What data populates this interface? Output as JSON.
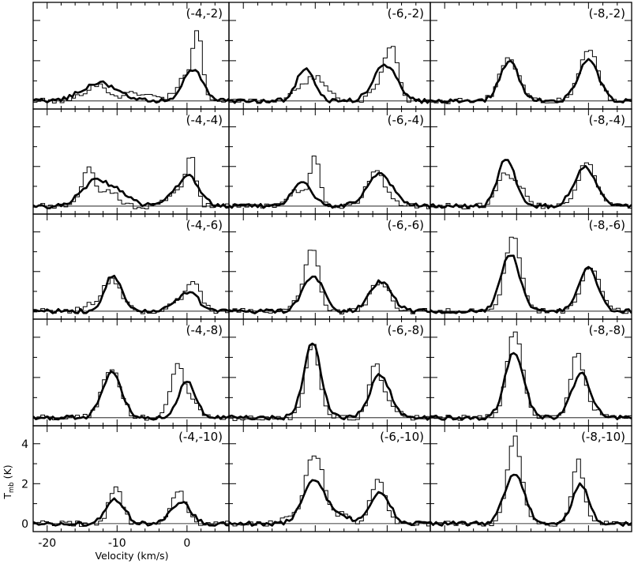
{
  "chart_data": {
    "type": "line",
    "layout": "5x3 grid of spectra",
    "xlabel": "Velocity (km/s)",
    "ylabel": "T",
    "ylabel_sub": "mb",
    "ylabel_unit": "(K)",
    "xlim": [
      -22,
      6
    ],
    "ylim": [
      -0.4,
      4.9
    ],
    "x_ticks": [
      -20,
      -10,
      0
    ],
    "y_ticks": [
      0,
      2,
      4
    ],
    "x_tick_labels": [
      "-20",
      "-10",
      "0"
    ],
    "y_tick_labels": [
      "0",
      "2",
      "4"
    ],
    "series_styles": [
      "thin histogram",
      "thick line"
    ],
    "panels": [
      {
        "label": "(-4,-2)",
        "thin": [
          [
            -13,
            0.8,
            1.6
          ],
          [
            -7,
            0.4,
            2.0
          ],
          [
            1.6,
            2.7,
            0.6
          ],
          [
            0.3,
            1.4,
            1.5
          ]
        ],
        "thick": [
          [
            -12.5,
            0.9,
            2.6
          ],
          [
            0.8,
            1.6,
            1.4
          ]
        ]
      },
      {
        "label": "(-6,-2)",
        "thin": [
          [
            -11,
            0.9,
            1.6
          ],
          [
            -9,
            0.6,
            1.2
          ],
          [
            0.6,
            2.5,
            0.9
          ],
          [
            -1,
            0.6,
            1.2
          ]
        ],
        "thick": [
          [
            -11.4,
            1.6,
            1.2
          ],
          [
            -0.3,
            1.8,
            1.6
          ]
        ]
      },
      {
        "label": "(-8,-2)",
        "thin": [
          [
            -11,
            2.1,
            1.3
          ],
          [
            0,
            2.6,
            1.3
          ]
        ],
        "thick": [
          [
            -11,
            2.0,
            1.3
          ],
          [
            0,
            2.0,
            1.4
          ]
        ]
      },
      {
        "label": "(-4,-4)",
        "thin": [
          [
            -14,
            2.0,
            0.9
          ],
          [
            -11,
            0.8,
            1.0
          ],
          [
            0.6,
            2.4,
            0.7
          ],
          [
            -1.5,
            0.8,
            1.2
          ]
        ],
        "thick": [
          [
            -13,
            1.3,
            2.0
          ],
          [
            -9.5,
            0.5,
            1.5
          ],
          [
            0.3,
            1.4,
            1.5
          ],
          [
            -2.5,
            0.3,
            2.0
          ]
        ]
      },
      {
        "label": "(-6,-4)",
        "thin": [
          [
            -10,
            2.5,
            0.7
          ],
          [
            -12.5,
            0.8,
            1.0
          ],
          [
            -1.5,
            1.7,
            1.3
          ]
        ],
        "thick": [
          [
            -11.8,
            1.2,
            1.4
          ],
          [
            -1,
            1.6,
            1.8
          ]
        ]
      },
      {
        "label": "(-8,-4)",
        "thin": [
          [
            -11.6,
            1.6,
            1.1
          ],
          [
            -9.5,
            0.8,
            0.9
          ],
          [
            -0.2,
            2.2,
            1.2
          ]
        ],
        "thick": [
          [
            -11.4,
            2.4,
            1.2
          ],
          [
            -0.5,
            2.0,
            1.5
          ]
        ]
      },
      {
        "label": "(-4,-6)",
        "thin": [
          [
            -10.8,
            1.6,
            1.3
          ],
          [
            -14,
            0.3,
            1.0
          ],
          [
            1,
            1.5,
            1.0
          ],
          [
            -1.5,
            0.5,
            1.0
          ]
        ],
        "thick": [
          [
            -10.6,
            1.8,
            1.2
          ],
          [
            0.3,
            1.0,
            1.3
          ],
          [
            -2.5,
            0.3,
            1.0
          ]
        ]
      },
      {
        "label": "(-6,-6)",
        "thin": [
          [
            -10.4,
            3.2,
            0.9
          ],
          [
            -12.5,
            0.4,
            1.2
          ],
          [
            -1,
            1.5,
            1.3
          ]
        ],
        "thick": [
          [
            -10.3,
            1.8,
            1.4
          ],
          [
            -0.9,
            1.5,
            1.5
          ]
        ]
      },
      {
        "label": "(-8,-6)",
        "thin": [
          [
            -10.5,
            3.7,
            1.1
          ],
          [
            0.3,
            2.3,
            1.2
          ]
        ],
        "thick": [
          [
            -10.9,
            2.9,
            1.3
          ],
          [
            0,
            2.2,
            1.3
          ]
        ]
      },
      {
        "label": "(-4,-8)",
        "thin": [
          [
            -10.8,
            2.4,
            1.3
          ],
          [
            -1.4,
            2.5,
            1.0
          ],
          [
            0.8,
            0.8,
            1.0
          ]
        ],
        "thick": [
          [
            -10.7,
            2.2,
            1.4
          ],
          [
            0,
            1.8,
            1.2
          ]
        ]
      },
      {
        "label": "(-6,-8)",
        "thin": [
          [
            -10.4,
            3.7,
            1.0
          ],
          [
            -1.7,
            2.7,
            0.8
          ],
          [
            0.2,
            0.8,
            1.0
          ]
        ],
        "thick": [
          [
            -10.4,
            3.7,
            1.2
          ],
          [
            -1,
            2.1,
            1.4
          ]
        ]
      },
      {
        "label": "(-8,-8)",
        "thin": [
          [
            -10.3,
            4.3,
            1.1
          ],
          [
            -1.6,
            3.1,
            0.9
          ],
          [
            0.3,
            0.5,
            1.0
          ]
        ],
        "thick": [
          [
            -10.3,
            3.3,
            1.3
          ],
          [
            -1,
            2.2,
            1.3
          ]
        ]
      },
      {
        "label": "(-4,-10)",
        "thin": [
          [
            -10.2,
            1.9,
            0.9
          ],
          [
            -1.2,
            1.7,
            1.0
          ]
        ],
        "thick": [
          [
            -10.2,
            1.2,
            1.3
          ],
          [
            -0.9,
            1.1,
            1.4
          ]
        ]
      },
      {
        "label": "(-6,-10)",
        "thin": [
          [
            -10.1,
            3.5,
            1.3
          ],
          [
            -14,
            0.2,
            1.2
          ],
          [
            -6,
            0.5,
            1.0
          ],
          [
            -1.3,
            2.2,
            1.0
          ]
        ],
        "thick": [
          [
            -10.1,
            2.2,
            1.6
          ],
          [
            -6,
            0.3,
            1.2
          ],
          [
            -1,
            1.5,
            1.4
          ]
        ]
      },
      {
        "label": "(-8,-10)",
        "thin": [
          [
            -10.3,
            4.3,
            1.0
          ],
          [
            -1.4,
            3.1,
            0.8
          ]
        ],
        "thick": [
          [
            -10.3,
            2.5,
            1.4
          ],
          [
            -1.1,
            2.0,
            1.1
          ]
        ]
      }
    ]
  }
}
